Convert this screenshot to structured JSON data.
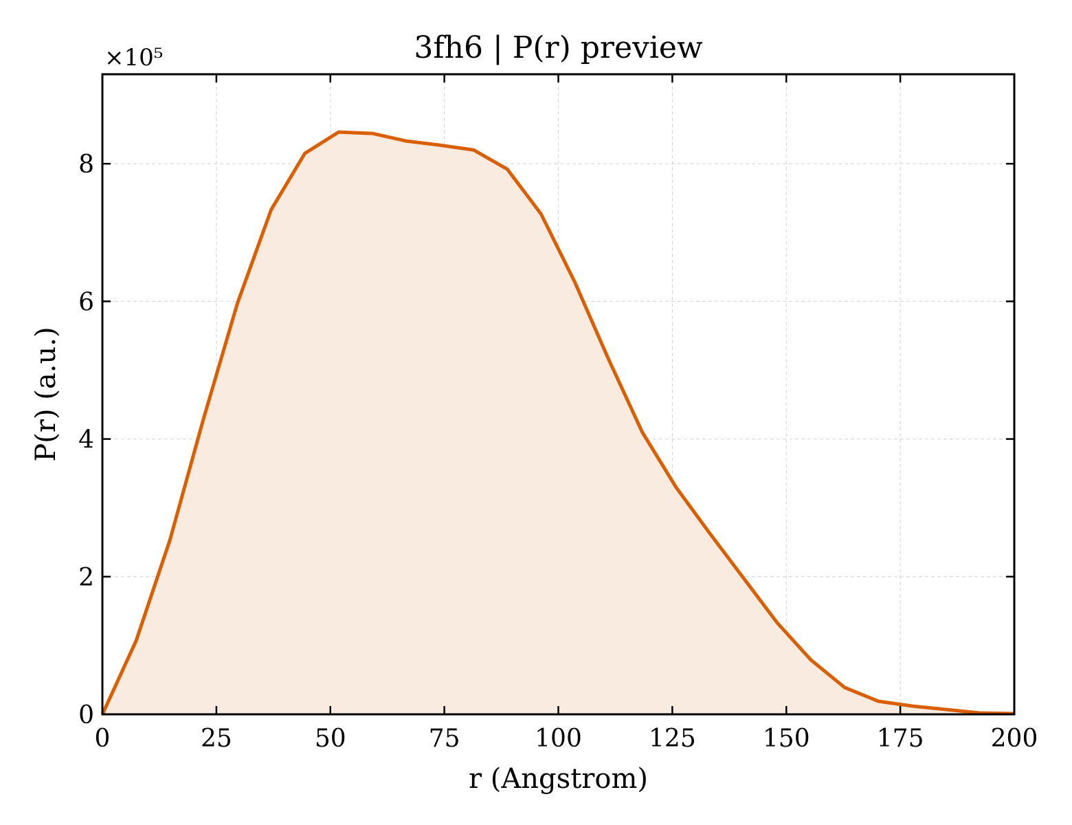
{
  "chart_data": {
    "type": "area",
    "title": "3fh6 | P(r) preview",
    "xlabel": "r (Angstrom)",
    "ylabel": "P(r) (a.u.)",
    "y_offset_label": "×10⁵",
    "y_scale": 100000,
    "xlim": [
      0,
      200
    ],
    "ylim": [
      0,
      9.3
    ],
    "xticks": [
      0,
      25,
      50,
      75,
      100,
      125,
      150,
      175,
      200
    ],
    "yticks": [
      0,
      2,
      4,
      6,
      8
    ],
    "grid": true,
    "line_color": "#d95f02",
    "fill_color": "#f9ebe0",
    "x": [
      0,
      7.4,
      14.8,
      22.2,
      29.6,
      37.0,
      44.4,
      51.8,
      59.2,
      66.6,
      74.0,
      81.4,
      88.8,
      96.2,
      103.6,
      111.0,
      118.4,
      125.8,
      133.2,
      140.6,
      148.0,
      155.4,
      162.8,
      170.2,
      177.6,
      185.0,
      192.4,
      200.0
    ],
    "values": [
      0.0,
      1.07,
      2.53,
      4.3,
      5.97,
      7.33,
      8.15,
      8.46,
      8.44,
      8.33,
      8.27,
      8.2,
      7.92,
      7.27,
      6.28,
      5.16,
      4.1,
      3.3,
      2.63,
      1.98,
      1.33,
      0.79,
      0.39,
      0.19,
      0.12,
      0.07,
      0.02,
      0.01
    ]
  }
}
